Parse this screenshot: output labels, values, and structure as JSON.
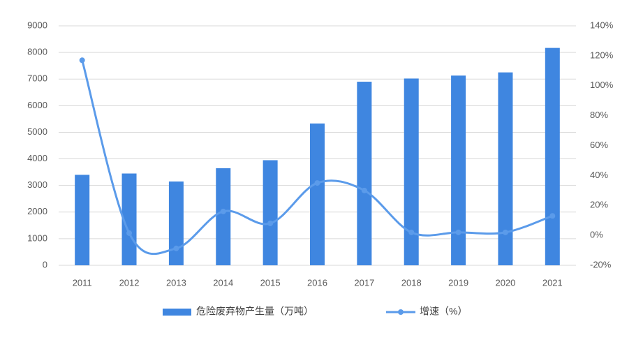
{
  "chart_data": {
    "type": "combo",
    "categories": [
      "2011",
      "2012",
      "2013",
      "2014",
      "2015",
      "2016",
      "2017",
      "2018",
      "2019",
      "2020",
      "2021"
    ],
    "series": [
      {
        "name": "危险废弃物产生量（万吨）",
        "type": "bar",
        "color": "#3f86e0",
        "values": [
          3400,
          3450,
          3150,
          3650,
          3950,
          5330,
          6900,
          7020,
          7130,
          7250,
          8170
        ]
      },
      {
        "name": "增速（%）",
        "type": "line",
        "axis": "y2",
        "color": "#5b9bea",
        "values": [
          117,
          1.5,
          -8.7,
          16,
          8,
          35,
          30,
          2,
          2,
          2,
          13
        ]
      }
    ],
    "ylim": [
      0,
      9000
    ],
    "yticks": [
      0,
      1000,
      2000,
      3000,
      4000,
      5000,
      6000,
      7000,
      8000,
      9000
    ],
    "y2lim": [
      -20,
      140
    ],
    "y2ticks": [
      {
        "value": -20,
        "label": "-20%"
      },
      {
        "value": 0,
        "label": "0%"
      },
      {
        "value": 20,
        "label": "20%"
      },
      {
        "value": 40,
        "label": "40%"
      },
      {
        "value": 60,
        "label": "60%"
      },
      {
        "value": 80,
        "label": "80%"
      },
      {
        "value": 100,
        "label": "100%"
      },
      {
        "value": 120,
        "label": "120%"
      },
      {
        "value": 140,
        "label": "140%"
      }
    ],
    "grid": true,
    "legend": "bottom"
  }
}
